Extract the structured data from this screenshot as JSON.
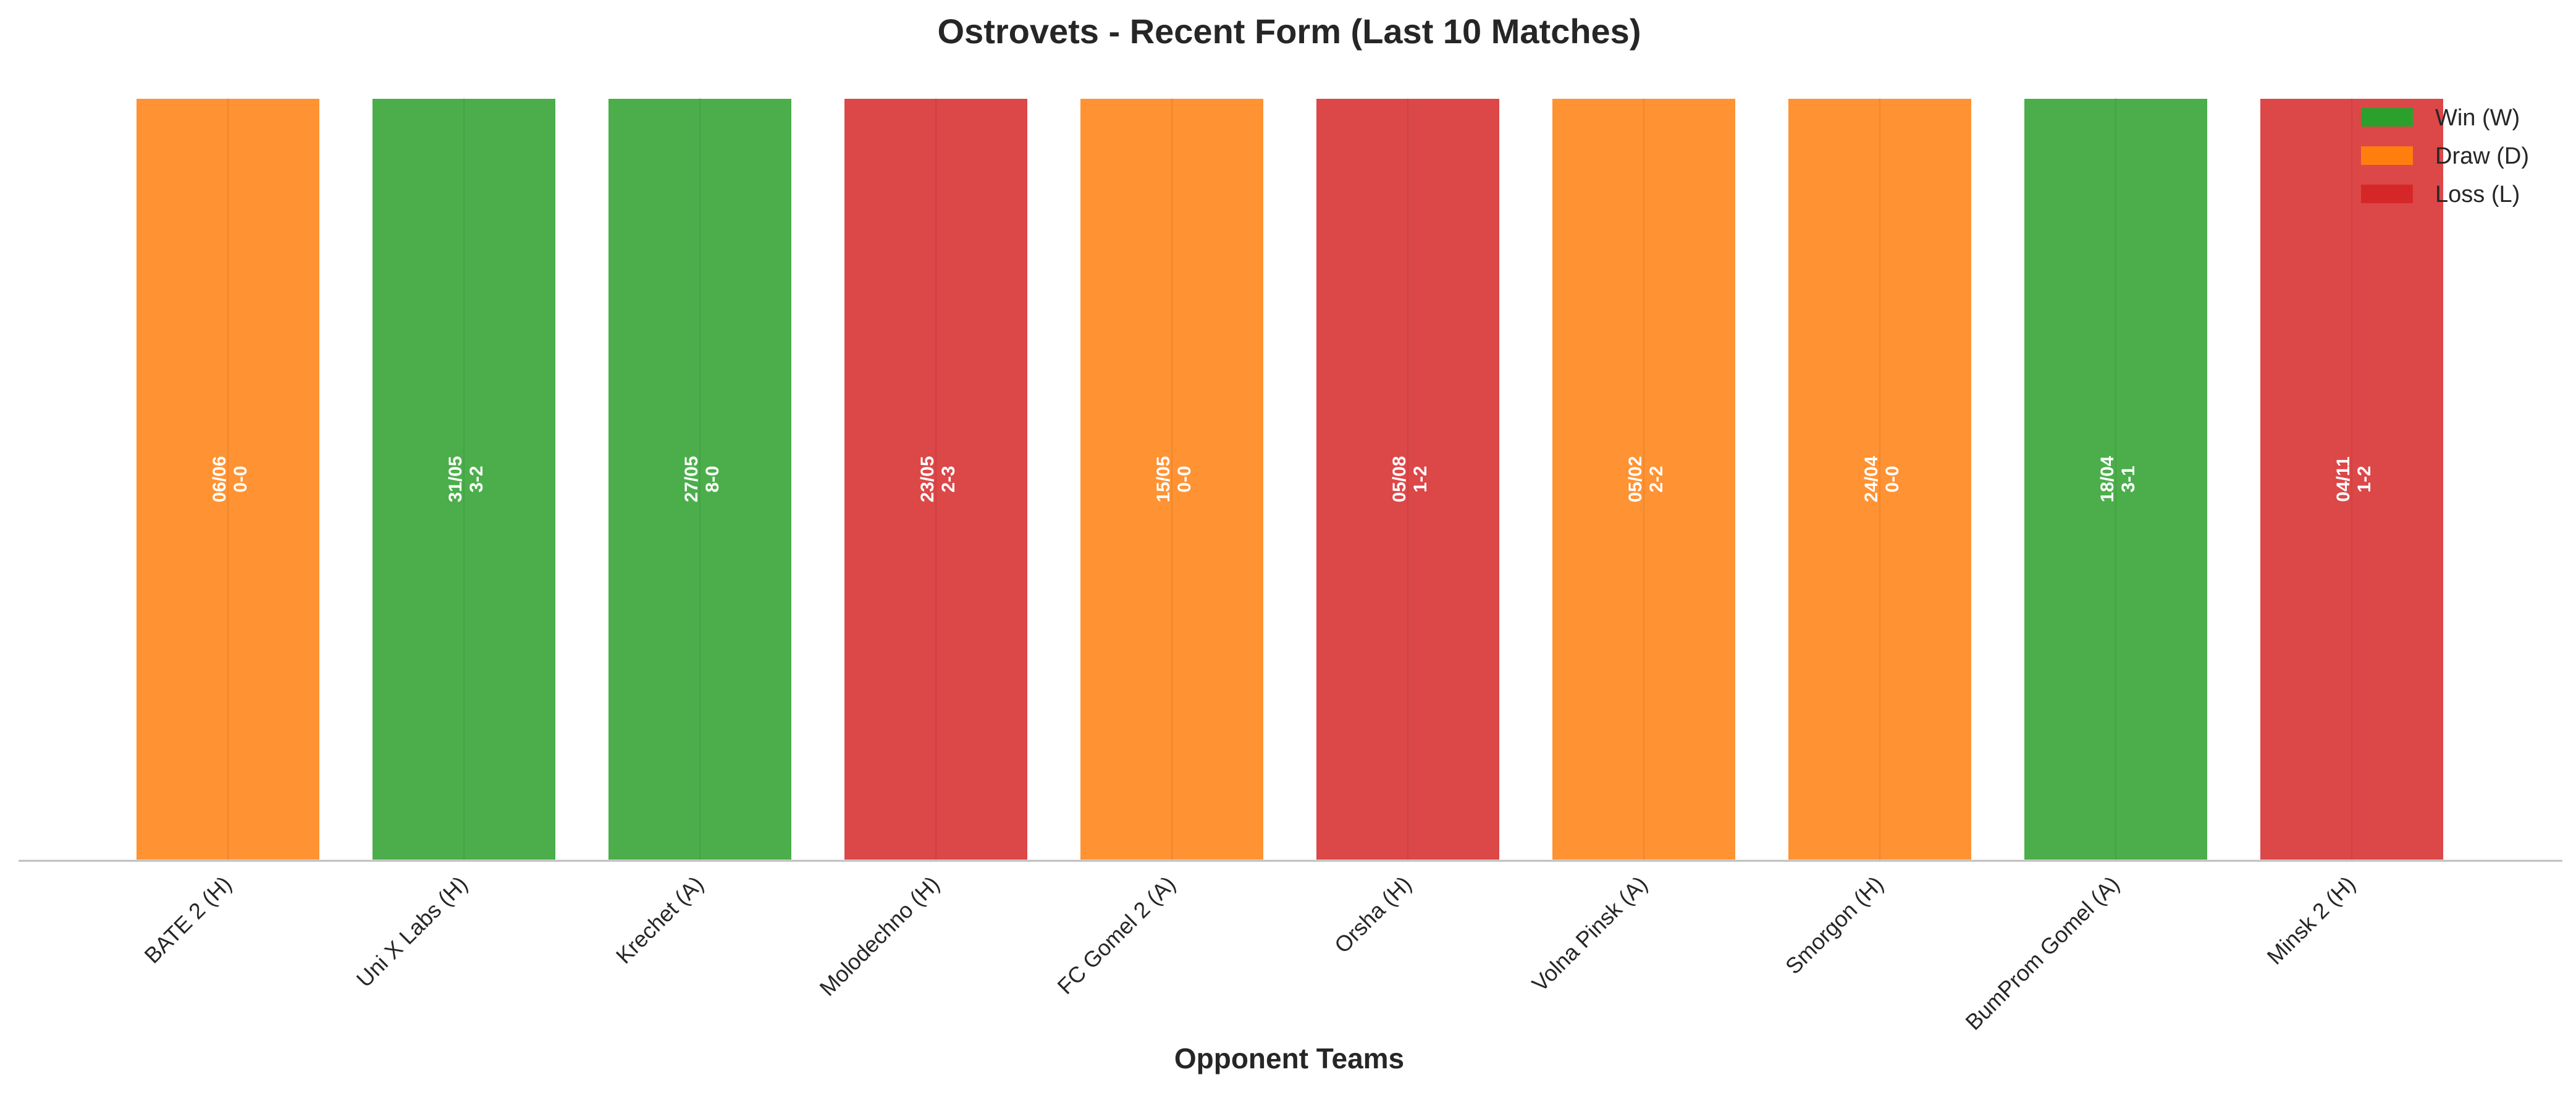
{
  "chart_data": {
    "type": "bar",
    "title": "Ostrovets - Recent Form (Last 10 Matches)",
    "xlabel": "Opponent Teams",
    "ylabel": "",
    "ylim": [
      0,
      1
    ],
    "grid": false,
    "legend_position": "top-right",
    "result_colors": {
      "W": "#2ca02c",
      "D": "#ff7f0e",
      "L": "#d62728"
    },
    "legend": [
      {
        "key": "W",
        "label": "Win (W)"
      },
      {
        "key": "D",
        "label": "Draw (D)"
      },
      {
        "key": "L",
        "label": "Loss (L)"
      }
    ],
    "categories": [
      "BATE 2 (H)",
      "Uni X Labs (H)",
      "Krechet (A)",
      "Molodechno (H)",
      "FC Gomel 2 (A)",
      "Orsha (H)",
      "Volna Pinsk (A)",
      "Smorgon (H)",
      "BumProm Gomel (A)",
      "Minsk 2 (H)"
    ],
    "values": [
      1,
      1,
      1,
      1,
      1,
      1,
      1,
      1,
      1,
      1
    ],
    "results": [
      "D",
      "W",
      "W",
      "L",
      "D",
      "L",
      "D",
      "D",
      "W",
      "L"
    ],
    "dates": [
      "06/06",
      "31/05",
      "27/05",
      "23/05",
      "15/05",
      "05/08",
      "05/02",
      "24/04",
      "18/04",
      "04/11"
    ],
    "scores": [
      "0-0",
      "3-2",
      "8-0",
      "2-3",
      "0-0",
      "1-2",
      "2-2",
      "0-0",
      "3-1",
      "1-2"
    ]
  }
}
